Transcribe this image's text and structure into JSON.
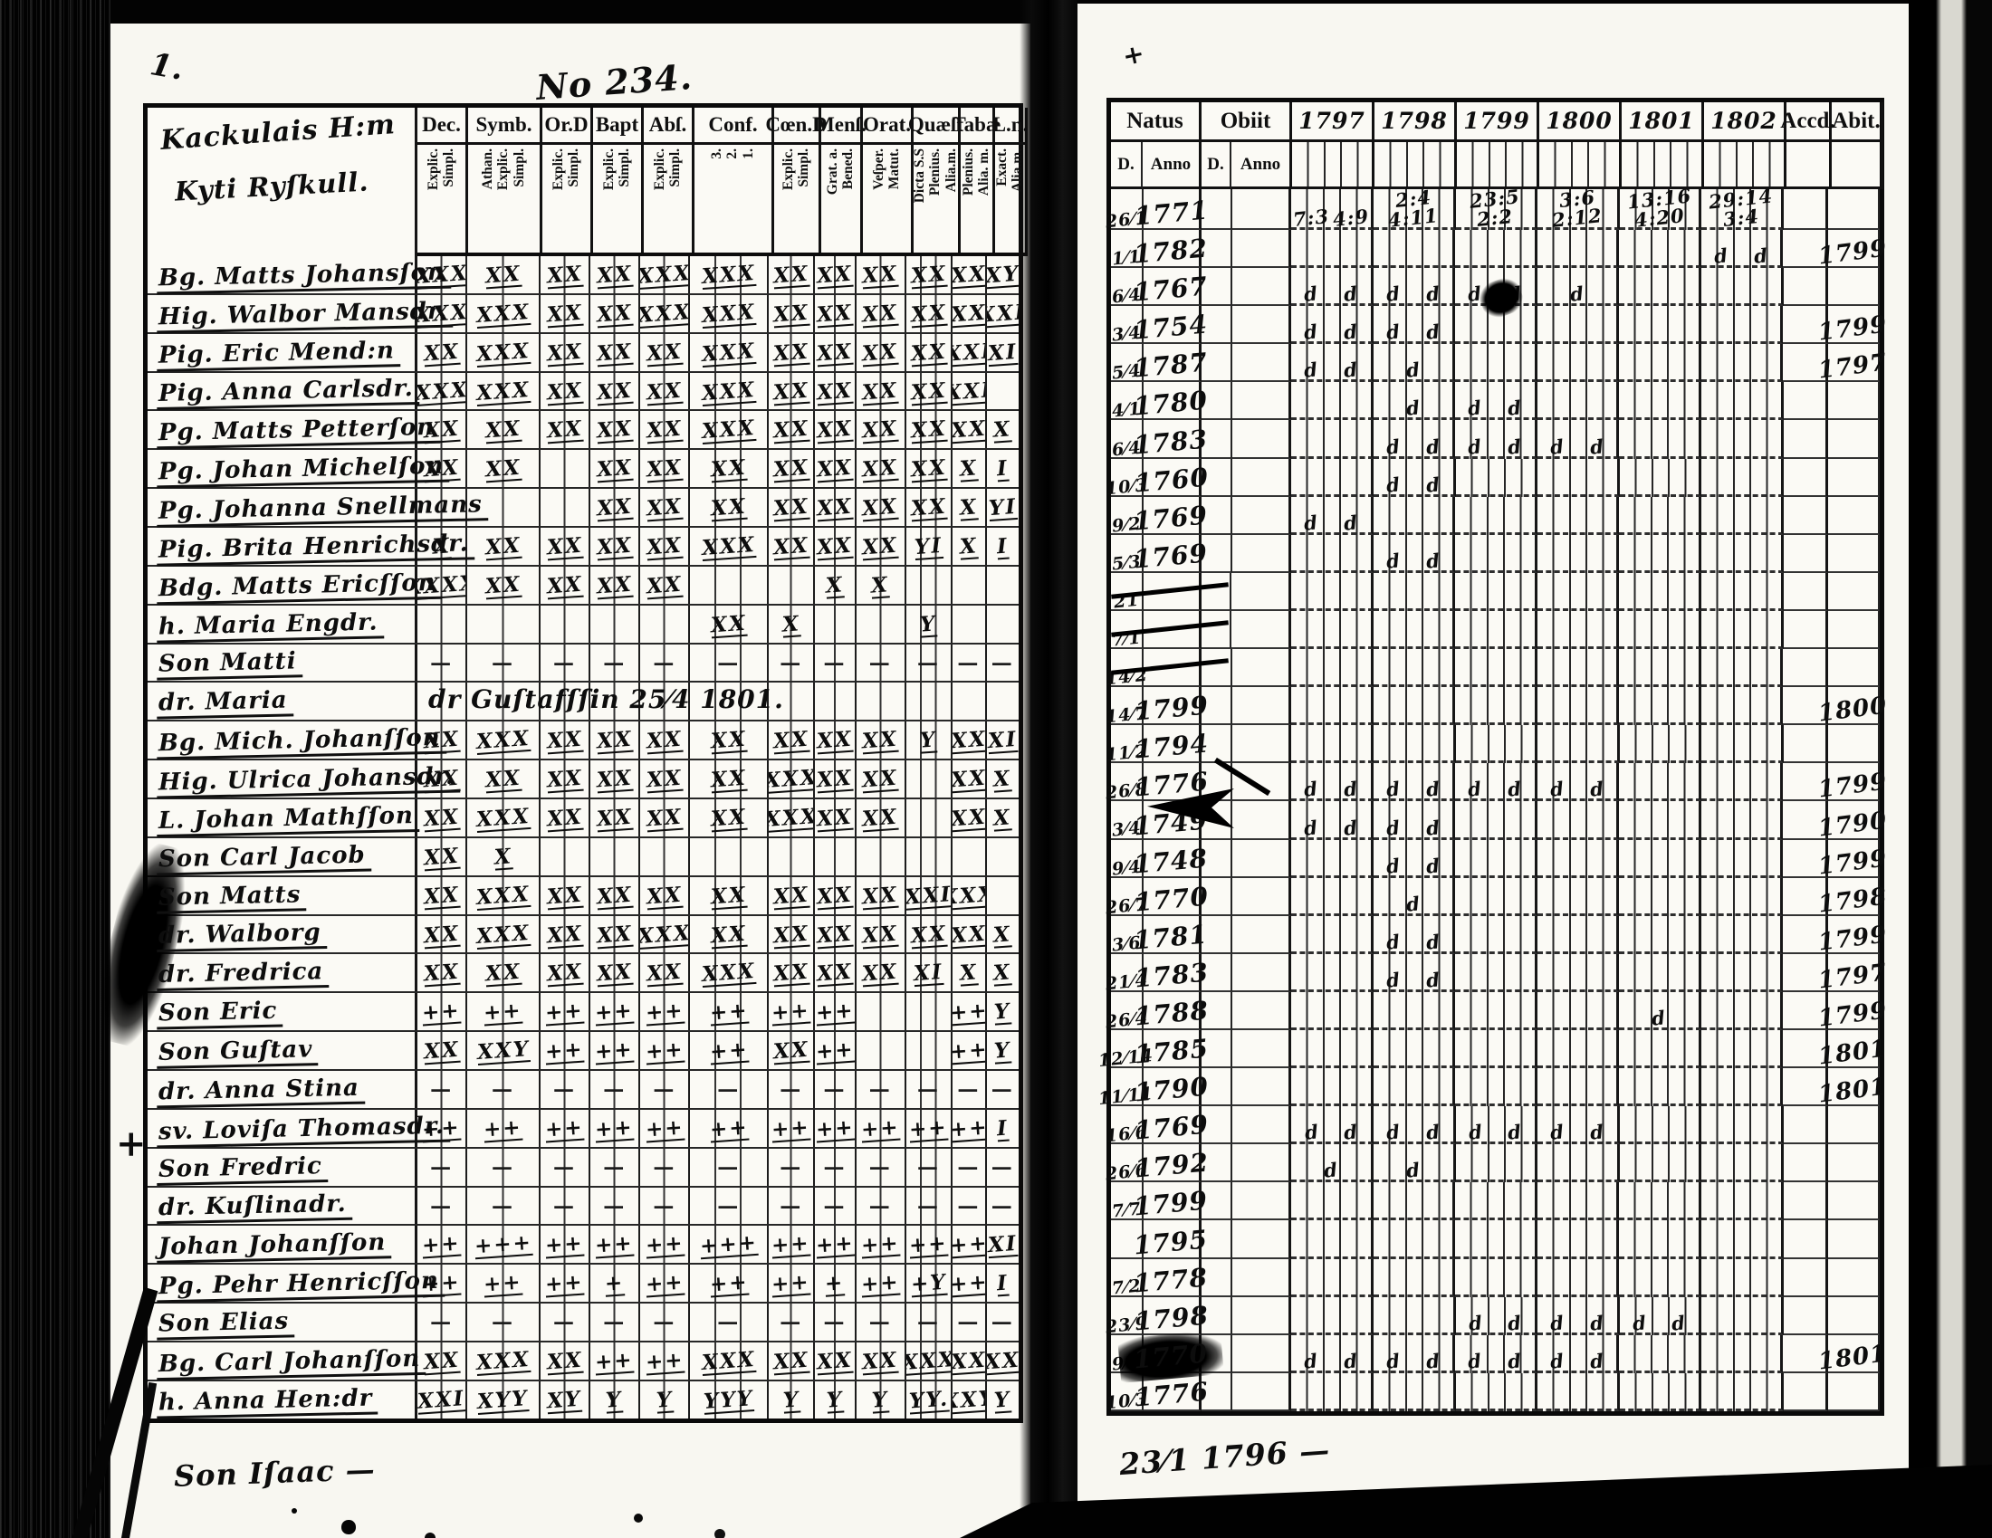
{
  "annotations": {
    "page_no": "No 234.",
    "corner_mark": "1.",
    "left_margin_cross": "+",
    "right_top_mark": "+"
  },
  "left_page": {
    "title_line1": "Kackulais H:m",
    "title_line2": "Kyti Ryſkull.",
    "footer_note": "Son Iſaac —",
    "columns": [
      {
        "label": "Dec.",
        "sublines": [
          "Explic.",
          "Simpl."
        ]
      },
      {
        "label": "Symb.",
        "sublines": [
          "Athan.",
          "Explic.",
          "Simpl."
        ]
      },
      {
        "label": "Or.D",
        "sublines": [
          "Explic.",
          "Simpl."
        ]
      },
      {
        "label": "Bapt",
        "sublines": [
          "Explic.",
          "Simpl."
        ]
      },
      {
        "label": "Abſ.",
        "sublines": [
          "Explic.",
          "Simpl."
        ]
      },
      {
        "label": "Conf.",
        "sublines": [
          "3.",
          "2.",
          "1."
        ]
      },
      {
        "label": "Cœn.D",
        "sublines": [
          "Explic.",
          "Simpl."
        ]
      },
      {
        "label": "Menſ.",
        "sublines": [
          "Grat. a.",
          "Bened."
        ]
      },
      {
        "label": "Orat.",
        "sublines": [
          "Veſper.",
          "Matut."
        ]
      },
      {
        "label": "Quæſt",
        "sublines": [
          "Dicta S.S",
          "Plenius.",
          "Alia.m."
        ]
      },
      {
        "label": "Tabæ",
        "sublines": [
          "Plenius.",
          "Alia. m."
        ]
      },
      {
        "label": "L.n.",
        "sublines": [
          "Exact.",
          "Alia.m."
        ]
      }
    ],
    "rows": [
      {
        "name": "Bg. Matts Johansſon",
        "marks": [
          "XXX",
          "XX",
          "XX",
          "XX",
          "XXX",
          "XXX",
          "XX",
          "XX",
          "XX",
          "XX",
          "XX",
          "XY"
        ]
      },
      {
        "name": "Hig. Walbor Mansdr.",
        "marks": [
          "XXX",
          "XXX",
          "XX",
          "XX",
          "XXX",
          "XXX",
          "XX",
          "XX",
          "XX",
          "XX",
          "XX",
          "XXI"
        ]
      },
      {
        "name": "Pig. Eric Mend:n",
        "marks": [
          "XX",
          "XXX",
          "XX",
          "XX",
          "XX",
          "XXX",
          "XX",
          "XX",
          "XX",
          "XX",
          "XXI",
          "XI"
        ]
      },
      {
        "name": "Pig. Anna Carlsdr.",
        "marks": [
          "XXX",
          "XXX",
          "XX",
          "XX",
          "XX",
          "XXX",
          "XX",
          "XX",
          "XX",
          "XX",
          "XXI",
          ""
        ]
      },
      {
        "name": "Pg. Matts Petterſon",
        "marks": [
          "XX",
          "XX",
          "XX",
          "XX",
          "XX",
          "XXX",
          "XX",
          "XX",
          "XX",
          "XX",
          "XX",
          "X"
        ]
      },
      {
        "name": "Pg. Johan Michelſon",
        "marks": [
          "XX",
          "XX",
          "",
          "XX",
          "XX",
          "XX",
          "XX",
          "XX",
          "XX",
          "XX",
          "X",
          "I"
        ]
      },
      {
        "name": "Pg. Johanna Snellmans",
        "marks": [
          "",
          "",
          "",
          "XX",
          "XX",
          "XX",
          "XX",
          "XX",
          "XX",
          "XX",
          "X",
          "YI"
        ]
      },
      {
        "name": "Pig. Brita Henrichsdr.",
        "marks": [
          "X",
          "XX",
          "XX",
          "XX",
          "XX",
          "XXX",
          "XX",
          "XX",
          "XX",
          "YI",
          "X",
          "I"
        ]
      },
      {
        "name": "Bdg. Matts Ericſſon",
        "marks": [
          "XXXX",
          "XX",
          "XX",
          "XX",
          "XX",
          "",
          "",
          "X",
          "X",
          "",
          "",
          ""
        ]
      },
      {
        "name": "h. Maria Engdr.",
        "marks": [
          "",
          "",
          "",
          "",
          "",
          "XX",
          "X",
          "",
          "",
          "Y",
          "",
          ""
        ]
      },
      {
        "name": "Son Matti",
        "marks": [
          "—",
          "—",
          "—",
          "—",
          "—",
          "—",
          "—",
          "—",
          "—",
          "—",
          "—",
          "—"
        ]
      },
      {
        "name": "dr. Maria",
        "note": "dr Guſtafſſin 25⁄4 1801.",
        "marks": [
          "",
          "",
          "",
          "",
          "",
          "",
          "",
          "",
          "",
          "",
          "",
          ""
        ]
      },
      {
        "name": "Bg. Mich. Johanſſon",
        "marks": [
          "XX",
          "XXX",
          "XX",
          "XX",
          "XX",
          "XX",
          "XX",
          "XX",
          "XX",
          "Y",
          "XX",
          "XI"
        ]
      },
      {
        "name": "Hig. Ulrica Johansdr.",
        "marks": [
          "XX",
          "XX",
          "XX",
          "XX",
          "XX",
          "XX",
          "XXX",
          "XX",
          "XX",
          "",
          "XX",
          "X"
        ]
      },
      {
        "name": "L. Johan Mathſſon",
        "marks": [
          "XX",
          "XXX",
          "XX",
          "XX",
          "XX",
          "XX",
          "XXX",
          "XX",
          "XX",
          "",
          "XX",
          "X"
        ]
      },
      {
        "name": "Son Carl Jacob",
        "marks": [
          "XX",
          "X",
          "",
          "",
          "",
          "",
          "",
          "",
          "",
          "",
          "",
          ""
        ]
      },
      {
        "name": "Son Matts",
        "marks": [
          "XX",
          "XXX",
          "XX",
          "XX",
          "XX",
          "XX",
          "XX",
          "XX",
          "XX",
          "XXI",
          "XXX",
          ""
        ]
      },
      {
        "name": "dr. Walborg",
        "marks": [
          "XX",
          "XXX",
          "XX",
          "XX",
          "XXX",
          "XX",
          "XX",
          "XX",
          "XX",
          "XX",
          "XX",
          "X"
        ]
      },
      {
        "name": "dr. Fredrica",
        "marks": [
          "XX",
          "XX",
          "XX",
          "XX",
          "XX",
          "XXX",
          "XX",
          "XX",
          "XX",
          "XI",
          "X",
          "X"
        ]
      },
      {
        "name": "Son Eric",
        "marks": [
          "++",
          "++",
          "++",
          "++",
          "++",
          "++",
          "++",
          "++",
          "",
          "",
          "++",
          "Y"
        ]
      },
      {
        "name": "Son Guſtav",
        "marks": [
          "XX",
          "XXY",
          "++",
          "++",
          "++",
          "++",
          "XX",
          "++",
          "",
          "",
          "++",
          "Y"
        ]
      },
      {
        "name": "dr. Anna Stina",
        "marks": [
          "—",
          "—",
          "—",
          "—",
          "—",
          "—",
          "—",
          "—",
          "—",
          "—",
          "—",
          "—"
        ]
      },
      {
        "name": "sv. Loviſa Thomasdr.",
        "marks": [
          "++",
          "++",
          "++",
          "++",
          "++",
          "++",
          "++",
          "++",
          "++",
          "++",
          "++",
          "I"
        ]
      },
      {
        "name": "Son Fredric",
        "marks": [
          "—",
          "—",
          "—",
          "—",
          "—",
          "—",
          "—",
          "—",
          "—",
          "—",
          "—",
          "—"
        ]
      },
      {
        "name": "dr. Kuſlinadr.",
        "marks": [
          "—",
          "—",
          "—",
          "—",
          "—",
          "—",
          "—",
          "—",
          "—",
          "—",
          "—",
          "—"
        ]
      },
      {
        "name": "Johan Johanſſon",
        "marks": [
          "++",
          "+++",
          "++",
          "++",
          "++",
          "+++",
          "++",
          "++",
          "++",
          "++",
          "++",
          "XI"
        ]
      },
      {
        "name": "Pg. Pehr Henricſſon",
        "marks": [
          "++",
          "++",
          "++",
          "+",
          "++",
          "++",
          "++",
          "+",
          "++",
          "+Y",
          "++",
          "I"
        ]
      },
      {
        "name": "Son Elias",
        "marks": [
          "—",
          "—",
          "—",
          "—",
          "—",
          "—",
          "—",
          "—",
          "—",
          "—",
          "—",
          "—"
        ]
      },
      {
        "name": "Bg. Carl Johanſſon",
        "marks": [
          "XX",
          "XXX",
          "XX",
          "++",
          "++",
          "XXX",
          "XX",
          "XX",
          "XX",
          "XXX",
          "XX",
          "XX"
        ]
      },
      {
        "name": "h. Anna Hen:dr",
        "marks": [
          "XXI",
          "XYY",
          "XY",
          "Y",
          "Y",
          "YYY",
          "Y",
          "Y",
          "Y",
          "YY.",
          "XXY",
          "Y"
        ]
      }
    ]
  },
  "right_page": {
    "natus_label": "Natus",
    "obiit_label": "Obiit",
    "day_label": "D.",
    "anno_label": "Anno",
    "years": [
      "1797",
      "1798",
      "1799",
      "1800",
      "1801",
      "1802"
    ],
    "accd_label": "Accd.",
    "abit_label": "Abit.",
    "footer_note": "23⁄1 1796 —",
    "rows": [
      {
        "d": "26⁄1",
        "anno": "1771",
        "y1797": "7:3 4:9",
        "y1798": "2:4 4:11",
        "y1799": "23:5 2:2",
        "y1800": "3:6 2:12",
        "y1801": "13:16 4:20",
        "y1802": "29:14 3:4"
      },
      {
        "d": "1⁄1",
        "anno": "1782",
        "y1802": "d d",
        "abit": "1799"
      },
      {
        "d": "6⁄4",
        "anno": "1767",
        "y1797": "d d",
        "y1798": "d d",
        "y1799": "d d",
        "y1800": "d"
      },
      {
        "d": "3⁄4",
        "anno": "1754",
        "y1797": "d d",
        "y1798": "d d",
        "abit": "1799"
      },
      {
        "d": "5⁄4",
        "anno": "1787",
        "y1797": "d d",
        "y1798": "d",
        "abit": "1797"
      },
      {
        "d": "4⁄1",
        "anno": "1780",
        "y1798": "d",
        "y1799": "d d"
      },
      {
        "d": "6⁄4",
        "anno": "1783",
        "y1798": "d d",
        "y1799": "d d",
        "y1800": "d d"
      },
      {
        "d": "10⁄3",
        "anno": "1760",
        "y1798": "d d"
      },
      {
        "d": "9⁄2",
        "anno": "1769",
        "y1797": "d d"
      },
      {
        "d": "5⁄3",
        "anno": "1769",
        "y1798": "d d"
      },
      {
        "d": "21",
        "anno": "",
        "struck": true
      },
      {
        "d": "7⁄1",
        "anno": "",
        "struck": true
      },
      {
        "d": "14⁄2",
        "anno": "",
        "struck": true
      },
      {
        "d": "14⁄7",
        "anno": "1799",
        "abit": "1800"
      },
      {
        "d": "11⁄2",
        "anno": "1794"
      },
      {
        "d": "26⁄8",
        "anno": "1776",
        "y1797": "d d",
        "y1798": "d d",
        "y1799": "d d",
        "y1800": "d d",
        "abit": "1799"
      },
      {
        "d": "3⁄4",
        "anno": "1749",
        "y1797": "d d",
        "y1798": "d d",
        "abit": "1790"
      },
      {
        "d": "9⁄4",
        "anno": "1748",
        "y1798": "d d",
        "abit": "1799"
      },
      {
        "d": "26⁄7",
        "anno": "1770",
        "y1798": "d",
        "abit": "1798"
      },
      {
        "d": "3⁄6",
        "anno": "1781",
        "y1798": "d d",
        "abit": "1799"
      },
      {
        "d": "21⁄4",
        "anno": "1783",
        "y1798": "d d",
        "abit": "1797"
      },
      {
        "d": "26⁄4",
        "anno": "1788",
        "y1801": "d",
        "abit": "1799"
      },
      {
        "d": "12⁄14",
        "anno": "1785",
        "abit": "1801"
      },
      {
        "d": "11⁄11",
        "anno": "1790",
        "abit": "1801"
      },
      {
        "d": "16⁄6",
        "anno": "1769",
        "y1797": "d d",
        "y1798": "d d",
        "y1799": "d d",
        "y1800": "d d"
      },
      {
        "d": "26⁄6",
        "anno": "1792",
        "y1797": "d",
        "y1798": "d"
      },
      {
        "d": "7⁄7",
        "anno": "1799"
      },
      {
        "d": "",
        "anno": "1795"
      },
      {
        "d": "7⁄2",
        "anno": "1778"
      },
      {
        "d": "23⁄9",
        "anno": "1798",
        "y1799": "d d",
        "y1800": "d d",
        "y1801": "d d"
      },
      {
        "d": "9⁄5",
        "anno": "1770",
        "blot": true,
        "y1797": "d d",
        "y1798": "d d",
        "y1799": "d d",
        "y1800": "d d",
        "abit": "1801"
      },
      {
        "d": "10⁄3",
        "anno": "1776"
      }
    ]
  }
}
